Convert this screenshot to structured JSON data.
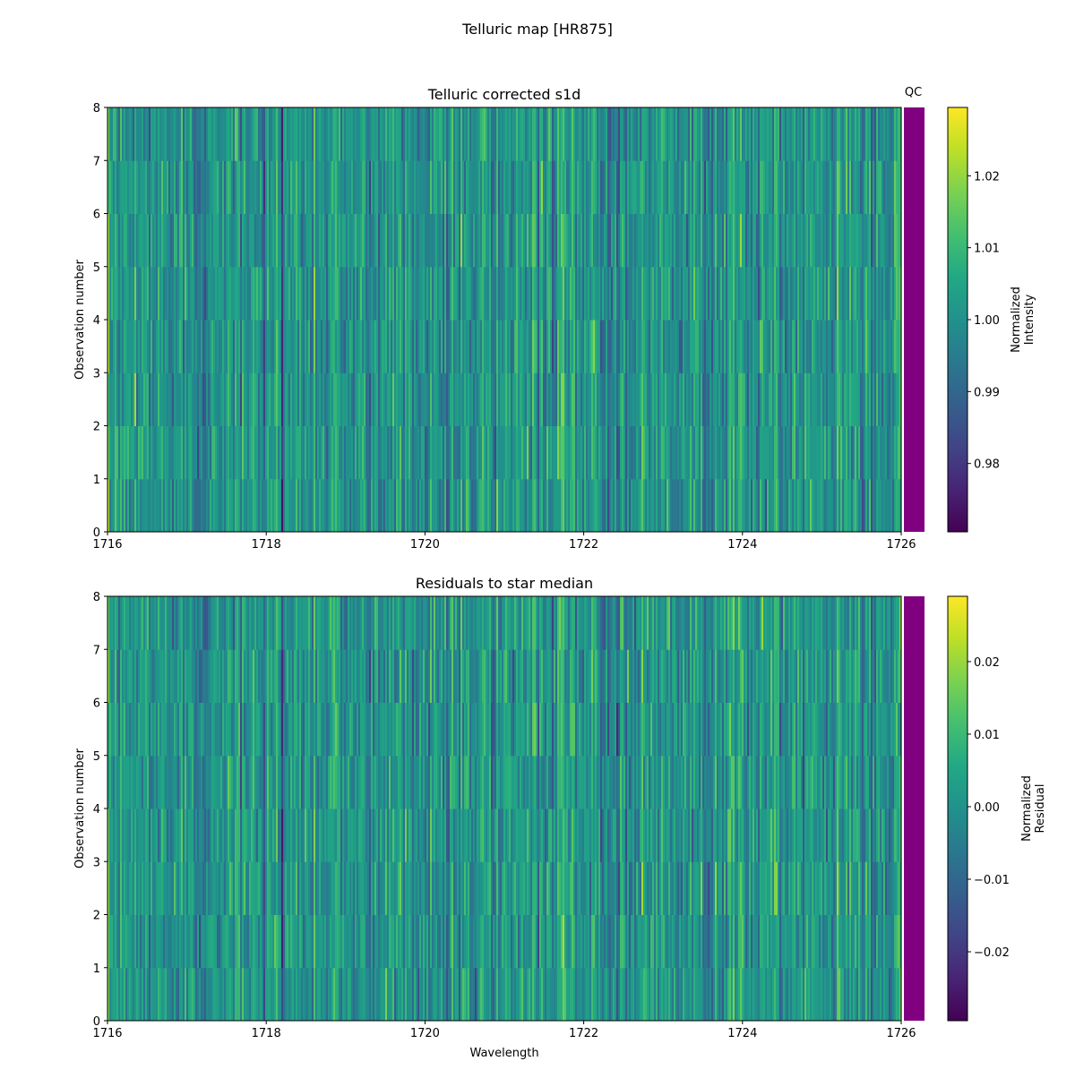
{
  "figure": {
    "suptitle": "Telluric map [HR875]"
  },
  "chart_data": [
    {
      "type": "heatmap",
      "title": "Telluric corrected s1d",
      "xlabel": "",
      "ylabel": "Observation number",
      "xlim": [
        1716,
        1726
      ],
      "ylim": [
        0,
        8
      ],
      "xticks": [
        1716,
        1718,
        1720,
        1722,
        1724,
        1726
      ],
      "xtick_labels": [
        "1716",
        "1718",
        "1720",
        "1722",
        "1724",
        "1726"
      ],
      "yticks": [
        0,
        1,
        2,
        3,
        4,
        5,
        6,
        7,
        8
      ],
      "ytick_labels": [
        "0",
        "1",
        "2",
        "3",
        "4",
        "5",
        "6",
        "7",
        "8"
      ],
      "rows": 8,
      "colormap": "viridis",
      "value_range": [
        0.97,
        1.03
      ],
      "colorbar": {
        "label_lines": [
          "Normalized",
          "Intensity"
        ],
        "ticks": [
          0.98,
          0.99,
          1.0,
          1.01,
          1.02
        ],
        "tick_labels": [
          "0.98",
          "0.99",
          "1.00",
          "1.01",
          "1.02"
        ],
        "range": [
          0.9705,
          1.0295
        ]
      },
      "qc": {
        "label": "QC",
        "color": "#800080"
      }
    },
    {
      "type": "heatmap",
      "title": "Residuals to star median",
      "xlabel": "Wavelength",
      "ylabel": "Observation number",
      "xlim": [
        1716,
        1726
      ],
      "ylim": [
        0,
        8
      ],
      "xticks": [
        1716,
        1718,
        1720,
        1722,
        1724,
        1726
      ],
      "xtick_labels": [
        "1716",
        "1718",
        "1720",
        "1722",
        "1724",
        "1726"
      ],
      "yticks": [
        0,
        1,
        2,
        3,
        4,
        5,
        6,
        7,
        8
      ],
      "ytick_labels": [
        "0",
        "1",
        "2",
        "3",
        "4",
        "5",
        "6",
        "7",
        "8"
      ],
      "rows": 8,
      "colormap": "viridis",
      "value_range": [
        -0.03,
        0.03
      ],
      "colorbar": {
        "label_lines": [
          "Normalized",
          "Residual"
        ],
        "ticks": [
          -0.02,
          -0.01,
          0.0,
          0.01,
          0.02
        ],
        "tick_labels": [
          "−0.02",
          "−0.01",
          "0.00",
          "0.01",
          "0.02"
        ],
        "range": [
          -0.0295,
          0.029
        ]
      },
      "qc": {
        "label": "",
        "color": "#800080"
      }
    }
  ]
}
